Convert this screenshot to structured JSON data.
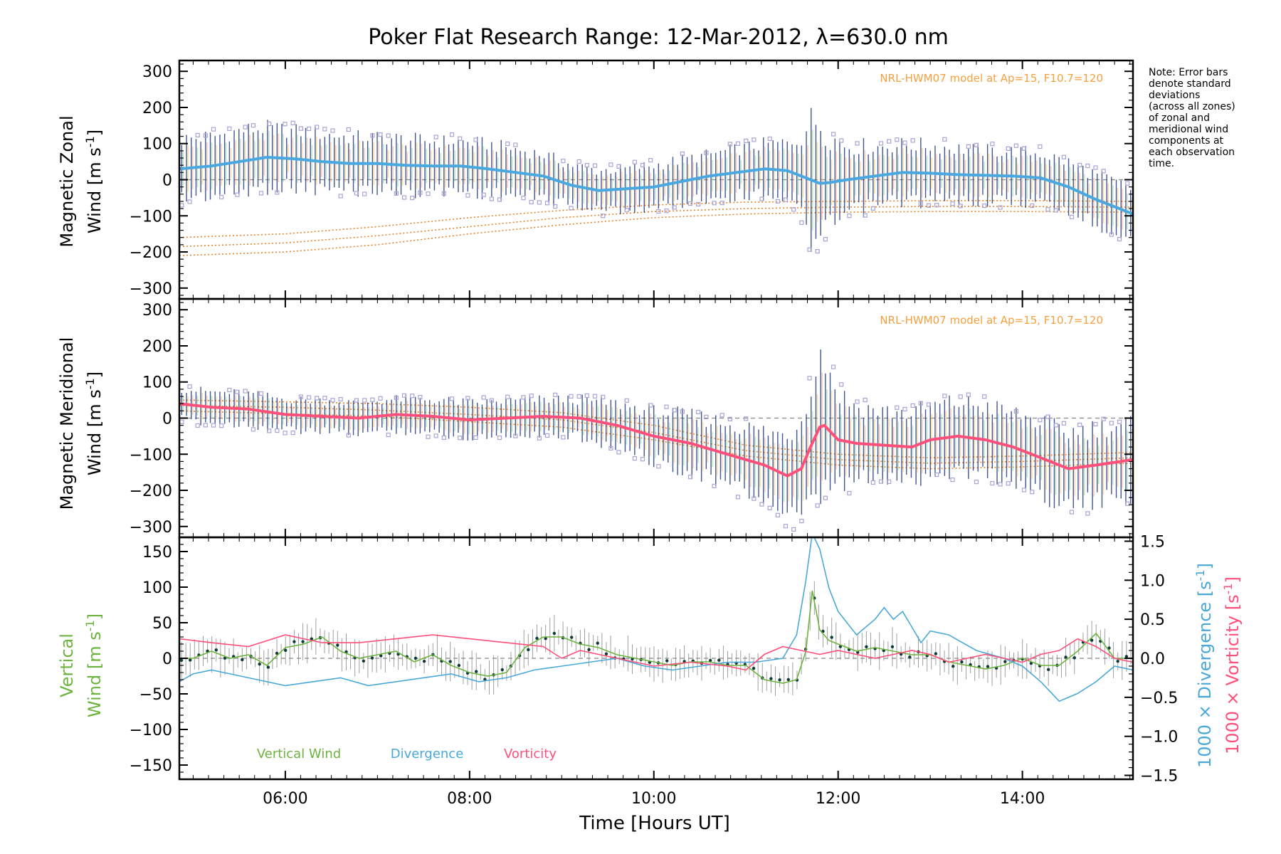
{
  "chart_data": [
    {
      "type": "line",
      "panel": "zonal",
      "title": "Poker Flat Research Range: 12-Mar-2012, λ=630.0 nm",
      "ylabel_line1": "Magnetic Zonal",
      "ylabel_line2": "Wind [m s",
      "ylabel_sup": "-1",
      "ylabel_close": "]",
      "ylim": [
        -330,
        330
      ],
      "yticks": [
        300,
        200,
        100,
        0,
        -100,
        -200,
        -300
      ],
      "yticklabels": [
        "300",
        "200",
        "100",
        "0",
        "−100",
        "−200",
        "−300"
      ],
      "xlim": [
        4.85,
        15.2
      ],
      "model_label": "NRL-HWM07 model at Ap=15, F10.7=120",
      "note": [
        "Note: Error bars",
        "denote standard",
        "deviations",
        "(across all zones)",
        "of zonal and",
        "meridional wind",
        "components at",
        "each observation",
        "time."
      ],
      "mean_wind": {
        "x": [
          4.85,
          5.2,
          5.5,
          5.8,
          6.1,
          6.4,
          6.7,
          7.0,
          7.3,
          7.6,
          7.9,
          8.2,
          8.5,
          8.8,
          9.1,
          9.4,
          9.7,
          10.0,
          10.3,
          10.6,
          10.9,
          11.2,
          11.45,
          11.6,
          11.7,
          11.8,
          11.9,
          12.1,
          12.4,
          12.7,
          13.0,
          13.3,
          13.6,
          13.9,
          14.2,
          14.5,
          14.8,
          15.2
        ],
        "y": [
          30,
          38,
          50,
          62,
          58,
          50,
          45,
          45,
          40,
          38,
          38,
          30,
          20,
          10,
          -15,
          -30,
          -25,
          -20,
          -5,
          10,
          20,
          30,
          25,
          10,
          0,
          -10,
          -8,
          0,
          10,
          20,
          18,
          14,
          12,
          10,
          5,
          -20,
          -55,
          -95
        ]
      },
      "spread": [
        95,
        95,
        100,
        95,
        90,
        90,
        85,
        85,
        85,
        80,
        80,
        80,
        75,
        70,
        65,
        65,
        65,
        70,
        70,
        70,
        75,
        80,
        90,
        130,
        190,
        200,
        150,
        110,
        95,
        90,
        90,
        85,
        80,
        80,
        80,
        80,
        80,
        80
      ],
      "model_curves": [
        {
          "x": [
            4.85,
            6.0,
            7.0,
            8.0,
            9.0,
            10.0,
            11.0,
            12.0,
            13.0,
            14.0,
            15.2
          ],
          "y": [
            -160,
            -150,
            -130,
            -105,
            -85,
            -70,
            -62,
            -60,
            -58,
            -58,
            -60
          ]
        },
        {
          "x": [
            4.85,
            6.0,
            7.0,
            8.0,
            9.0,
            10.0,
            11.0,
            12.0,
            13.0,
            14.0,
            15.2
          ],
          "y": [
            -185,
            -175,
            -155,
            -130,
            -105,
            -88,
            -80,
            -76,
            -74,
            -74,
            -76
          ]
        },
        {
          "x": [
            4.85,
            6.0,
            7.0,
            8.0,
            9.0,
            10.0,
            11.0,
            12.0,
            13.0,
            14.0,
            15.2
          ],
          "y": [
            -210,
            -200,
            -180,
            -150,
            -125,
            -105,
            -95,
            -90,
            -88,
            -88,
            -90
          ]
        }
      ],
      "colors": {
        "mean": "#4aa8e0",
        "bars": "#1f3a7a",
        "model": "#e8832a",
        "scatter": "#a9a3d6",
        "band": "#f4a582",
        "note": "#f4a040"
      }
    },
    {
      "type": "line",
      "panel": "meridional",
      "ylabel_line1": "Magnetic Meridional",
      "ylabel_line2": "Wind [m s",
      "ylabel_sup": "-1",
      "ylabel_close": "]",
      "ylim": [
        -330,
        330
      ],
      "yticks": [
        300,
        200,
        100,
        0,
        -100,
        -200,
        -300
      ],
      "yticklabels": [
        "300",
        "200",
        "100",
        "0",
        "−100",
        "−200",
        "−300"
      ],
      "xlim": [
        4.85,
        15.2
      ],
      "model_label": "NRL-HWM07 model at Ap=15, F10.7=120",
      "mean_wind": {
        "x": [
          4.85,
          5.2,
          5.6,
          6.0,
          6.4,
          6.8,
          7.2,
          7.6,
          8.0,
          8.4,
          8.8,
          9.2,
          9.6,
          10.0,
          10.4,
          10.8,
          11.2,
          11.45,
          11.6,
          11.7,
          11.8,
          11.85,
          12.0,
          12.2,
          12.5,
          12.8,
          13.0,
          13.3,
          13.6,
          13.9,
          14.2,
          14.5,
          14.8,
          15.2
        ],
        "y": [
          40,
          30,
          25,
          10,
          5,
          0,
          10,
          5,
          -5,
          0,
          5,
          0,
          -20,
          -50,
          -70,
          -100,
          -130,
          -160,
          -140,
          -80,
          -25,
          -20,
          -60,
          -70,
          -75,
          -80,
          -60,
          -50,
          -60,
          -80,
          -110,
          -140,
          -130,
          -115
        ]
      },
      "spread": [
        50,
        50,
        50,
        50,
        50,
        50,
        50,
        55,
        55,
        55,
        55,
        60,
        70,
        80,
        90,
        100,
        110,
        130,
        160,
        210,
        230,
        220,
        150,
        120,
        110,
        110,
        110,
        110,
        110,
        110,
        115,
        120,
        120,
        120
      ],
      "model_curves": [
        {
          "x": [
            4.85,
            6.0,
            7.0,
            8.0,
            9.0,
            10.0,
            11.0,
            12.0,
            13.0,
            14.0,
            15.2
          ],
          "y": [
            50,
            45,
            40,
            30,
            15,
            -20,
            -75,
            -100,
            -110,
            -105,
            -95
          ]
        },
        {
          "x": [
            4.85,
            6.0,
            7.0,
            8.0,
            9.0,
            10.0,
            11.0,
            12.0,
            13.0,
            14.0,
            15.2
          ],
          "y": [
            35,
            30,
            22,
            10,
            -5,
            -40,
            -90,
            -115,
            -125,
            -120,
            -110
          ]
        },
        {
          "x": [
            4.85,
            6.0,
            7.0,
            8.0,
            9.0,
            10.0,
            11.0,
            12.0,
            13.0,
            14.0,
            15.2
          ],
          "y": [
            20,
            12,
            5,
            -10,
            -25,
            -60,
            -105,
            -130,
            -140,
            -135,
            -125
          ]
        }
      ],
      "colors": {
        "mean": "#ff4f7b",
        "bars": "#1f3a7a",
        "model": "#e8832a",
        "scatter": "#a9a3d6",
        "band": "#f4a582",
        "note": "#f4a040"
      }
    },
    {
      "type": "line",
      "panel": "vertical",
      "xlabel": "Time [Hours UT]",
      "xticks": [
        6,
        8,
        10,
        12,
        14
      ],
      "xticklabels": [
        "06:00",
        "08:00",
        "10:00",
        "12:00",
        "14:00"
      ],
      "xlim": [
        4.85,
        15.2
      ],
      "ylabel_line1": "Vertical",
      "ylabel_line2": "Wind [m s",
      "ylabel_sup": "-1",
      "ylabel_close": "]",
      "ylim": [
        -170,
        170
      ],
      "yticks": [
        150,
        100,
        50,
        0,
        -50,
        -100,
        -150
      ],
      "yticklabels": [
        "150",
        "100",
        "50",
        "0",
        "−50",
        "−100",
        "−150"
      ],
      "y2label_div": "1000 × Divergence [s",
      "y2label_vort": "1000 × Vorticity [s",
      "y2label_sup": "-1",
      "y2label_close": "]",
      "y2lim": [
        -1.55,
        1.55
      ],
      "y2ticks": [
        1.5,
        1.0,
        0.5,
        0.0,
        -0.5,
        -1.0,
        -1.5
      ],
      "y2ticklabels": [
        "1.5",
        "1.0",
        "0.5",
        "0.0",
        "−0.5",
        "−1.0",
        "−1.5"
      ],
      "legend": [
        "Vertical Wind",
        "Divergence",
        "Vorticity"
      ],
      "series": [
        {
          "name": "Vertical Wind",
          "axis": "left",
          "x": [
            4.85,
            5.0,
            5.2,
            5.4,
            5.6,
            5.8,
            6.0,
            6.2,
            6.4,
            6.6,
            6.8,
            7.0,
            7.2,
            7.4,
            7.6,
            7.8,
            8.0,
            8.2,
            8.4,
            8.6,
            8.8,
            9.0,
            9.2,
            9.4,
            9.6,
            9.8,
            10.0,
            10.2,
            10.4,
            10.6,
            10.8,
            11.0,
            11.2,
            11.4,
            11.55,
            11.65,
            11.72,
            11.8,
            11.9,
            12.0,
            12.2,
            12.4,
            12.6,
            12.8,
            13.0,
            13.2,
            13.4,
            13.6,
            13.8,
            14.0,
            14.2,
            14.4,
            14.6,
            14.8,
            15.0,
            15.2
          ],
          "y": [
            0,
            0,
            10,
            0,
            5,
            -10,
            15,
            20,
            30,
            10,
            0,
            5,
            10,
            -5,
            5,
            -10,
            -20,
            -25,
            -20,
            15,
            30,
            30,
            20,
            15,
            5,
            0,
            -5,
            -10,
            -5,
            -5,
            -10,
            -10,
            -30,
            -35,
            -30,
            10,
            95,
            40,
            25,
            20,
            10,
            15,
            10,
            5,
            5,
            -5,
            -10,
            -15,
            -10,
            0,
            -10,
            -10,
            10,
            35,
            0,
            0
          ]
        },
        {
          "name": "Divergence",
          "axis": "right",
          "x": [
            4.85,
            5.0,
            5.2,
            5.4,
            5.6,
            5.8,
            6.0,
            6.3,
            6.6,
            6.9,
            7.2,
            7.5,
            7.8,
            8.1,
            8.4,
            8.7,
            9.0,
            9.3,
            9.6,
            9.9,
            10.2,
            10.5,
            10.8,
            11.1,
            11.4,
            11.55,
            11.65,
            11.72,
            11.8,
            11.9,
            12.0,
            12.2,
            12.4,
            12.5,
            12.6,
            12.7,
            12.8,
            12.9,
            13.0,
            13.2,
            13.5,
            13.8,
            14.0,
            14.2,
            14.4,
            14.6,
            14.8,
            15.0,
            15.2
          ],
          "y": [
            -0.3,
            -0.2,
            -0.15,
            -0.2,
            -0.25,
            -0.3,
            -0.35,
            -0.3,
            -0.25,
            -0.35,
            -0.3,
            -0.25,
            -0.2,
            -0.3,
            -0.25,
            -0.15,
            -0.1,
            -0.05,
            0.0,
            -0.1,
            -0.15,
            -0.1,
            -0.05,
            -0.05,
            0.0,
            0.3,
            1.0,
            1.6,
            1.4,
            0.9,
            0.6,
            0.3,
            0.5,
            0.65,
            0.5,
            0.6,
            0.4,
            0.2,
            0.35,
            0.3,
            0.1,
            0.0,
            -0.1,
            -0.3,
            -0.55,
            -0.45,
            -0.3,
            -0.1,
            -0.15
          ]
        },
        {
          "name": "Vorticity",
          "axis": "right",
          "x": [
            4.85,
            5.2,
            5.6,
            6.0,
            6.4,
            6.8,
            7.2,
            7.6,
            8.0,
            8.4,
            8.8,
            9.0,
            9.2,
            9.4,
            9.6,
            9.8,
            10.0,
            10.4,
            10.8,
            11.0,
            11.2,
            11.4,
            11.6,
            11.8,
            12.0,
            12.2,
            12.4,
            12.6,
            12.8,
            13.0,
            13.2,
            13.4,
            13.6,
            13.8,
            14.0,
            14.2,
            14.4,
            14.6,
            14.8,
            15.0,
            15.2
          ],
          "y": [
            0.25,
            0.2,
            0.15,
            0.3,
            0.2,
            0.2,
            0.25,
            0.3,
            0.25,
            0.2,
            0.15,
            0.0,
            0.1,
            0.05,
            0.0,
            -0.05,
            -0.1,
            -0.05,
            -0.1,
            -0.15,
            0.05,
            0.15,
            0.1,
            0.05,
            0.1,
            0.05,
            0.0,
            0.05,
            0.1,
            0.05,
            -0.05,
            0.0,
            0.05,
            0.0,
            -0.05,
            0.05,
            0.1,
            0.25,
            0.15,
            0.0,
            -0.05
          ]
        }
      ],
      "colors": {
        "vertical": "#6db33f",
        "divergence": "#4aa8d8",
        "vorticity": "#ff4f7b",
        "points": "#0d3a3a",
        "errbars": "#888888"
      }
    }
  ]
}
